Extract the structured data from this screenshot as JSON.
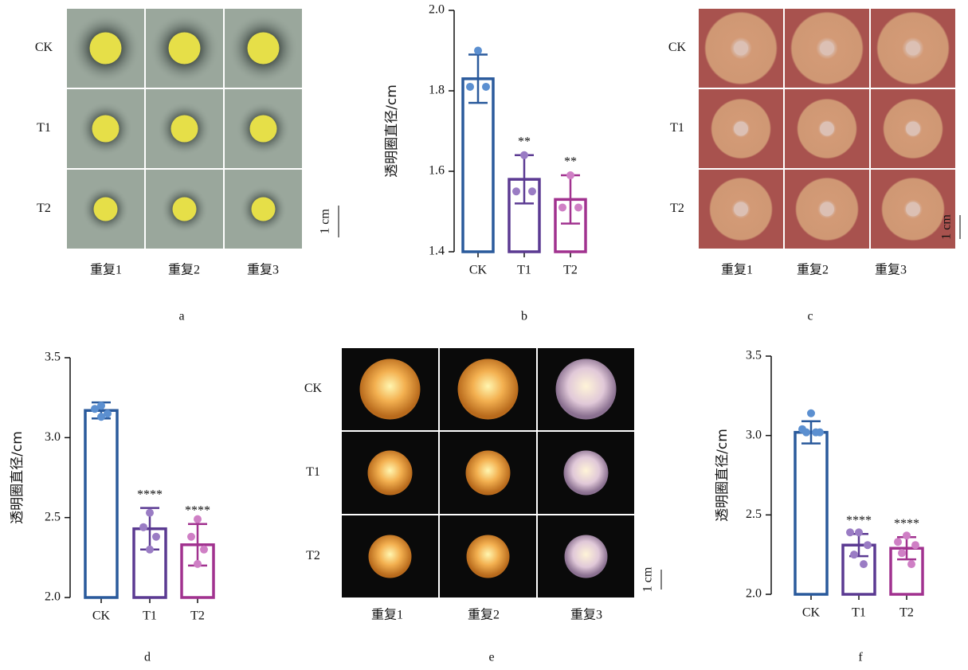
{
  "chart_data": [
    {
      "type": "bar",
      "panel": "b",
      "ylabel": "透明圈直径/cm",
      "categories": [
        "CK",
        "T1",
        "T2"
      ],
      "colors": [
        "#2a5a9c",
        "#5b3a92",
        "#a1328f"
      ],
      "point_colors": [
        "#5b8fd0",
        "#9a7cc4",
        "#cf7fc5"
      ],
      "values": [
        1.83,
        1.58,
        1.53
      ],
      "errors": [
        0.06,
        0.06,
        0.06
      ],
      "points": [
        [
          1.9,
          1.81,
          1.81
        ],
        [
          1.64,
          1.55,
          1.55
        ],
        [
          1.59,
          1.51,
          1.51
        ]
      ],
      "significance": [
        null,
        "**",
        "**"
      ],
      "ylim": [
        1.4,
        2.0
      ],
      "yticks": [
        1.4,
        1.6,
        1.8,
        {
          "value": 2.0,
          "label": "2.0"
        }
      ]
    },
    {
      "type": "bar",
      "panel": "d",
      "ylabel": "透明圈直径/cm",
      "categories": [
        "CK",
        "T1",
        "T2"
      ],
      "colors": [
        "#2a5a9c",
        "#5b3a92",
        "#a1328f"
      ],
      "point_colors": [
        "#5b8fd0",
        "#9a7cc4",
        "#cf7fc5"
      ],
      "values": [
        3.17,
        2.43,
        2.33
      ],
      "errors": [
        0.05,
        0.13,
        0.13
      ],
      "points": [
        [
          3.2,
          3.18,
          3.15,
          3.13
        ],
        [
          2.53,
          2.44,
          2.38,
          2.3
        ],
        [
          2.49,
          2.38,
          2.3,
          2.21
        ]
      ],
      "significance": [
        null,
        "****",
        "****"
      ],
      "ylim": [
        2.0,
        3.5
      ],
      "yticks": [
        {
          "value": 2.0,
          "label": "2.0"
        },
        2.5,
        {
          "value": 3.0,
          "label": "3.0"
        },
        3.5
      ]
    },
    {
      "type": "bar",
      "panel": "f",
      "ylabel": "透明圈直径/cm",
      "categories": [
        "CK",
        "T1",
        "T2"
      ],
      "colors": [
        "#2a5a9c",
        "#5b3a92",
        "#a1328f"
      ],
      "point_colors": [
        "#5b8fd0",
        "#9a7cc4",
        "#cf7fc5"
      ],
      "values": [
        3.02,
        2.31,
        2.29
      ],
      "errors": [
        0.07,
        0.07,
        0.07
      ],
      "points": [
        [
          3.14,
          3.04,
          3.02,
          3.02,
          3.02
        ],
        [
          2.39,
          2.39,
          2.31,
          2.25,
          2.19
        ],
        [
          2.37,
          2.33,
          2.31,
          2.26,
          2.19
        ]
      ],
      "significance": [
        null,
        "****",
        "****"
      ],
      "ylim": [
        2.0,
        3.5
      ],
      "yticks": [
        {
          "value": 2.0,
          "label": "2.0"
        },
        2.5,
        {
          "value": 3.0,
          "label": "3.0"
        },
        3.5
      ]
    }
  ],
  "photos": [
    {
      "label": "a",
      "rows": [
        "CK",
        "T1",
        "T2"
      ],
      "columns": [
        "重复1",
        "重复2",
        "重复3"
      ],
      "scale": "1 cm"
    },
    {
      "label": "c",
      "rows": [
        "CK",
        "T1",
        "T2"
      ],
      "columns": [
        "重复1",
        "重复2",
        "重复3"
      ],
      "scale": "1 cm"
    },
    {
      "label": "e",
      "rows": [
        "CK",
        "T1",
        "T2"
      ],
      "columns": [
        "重复1",
        "重复2",
        "重复3"
      ],
      "scale": "1 cm"
    }
  ]
}
